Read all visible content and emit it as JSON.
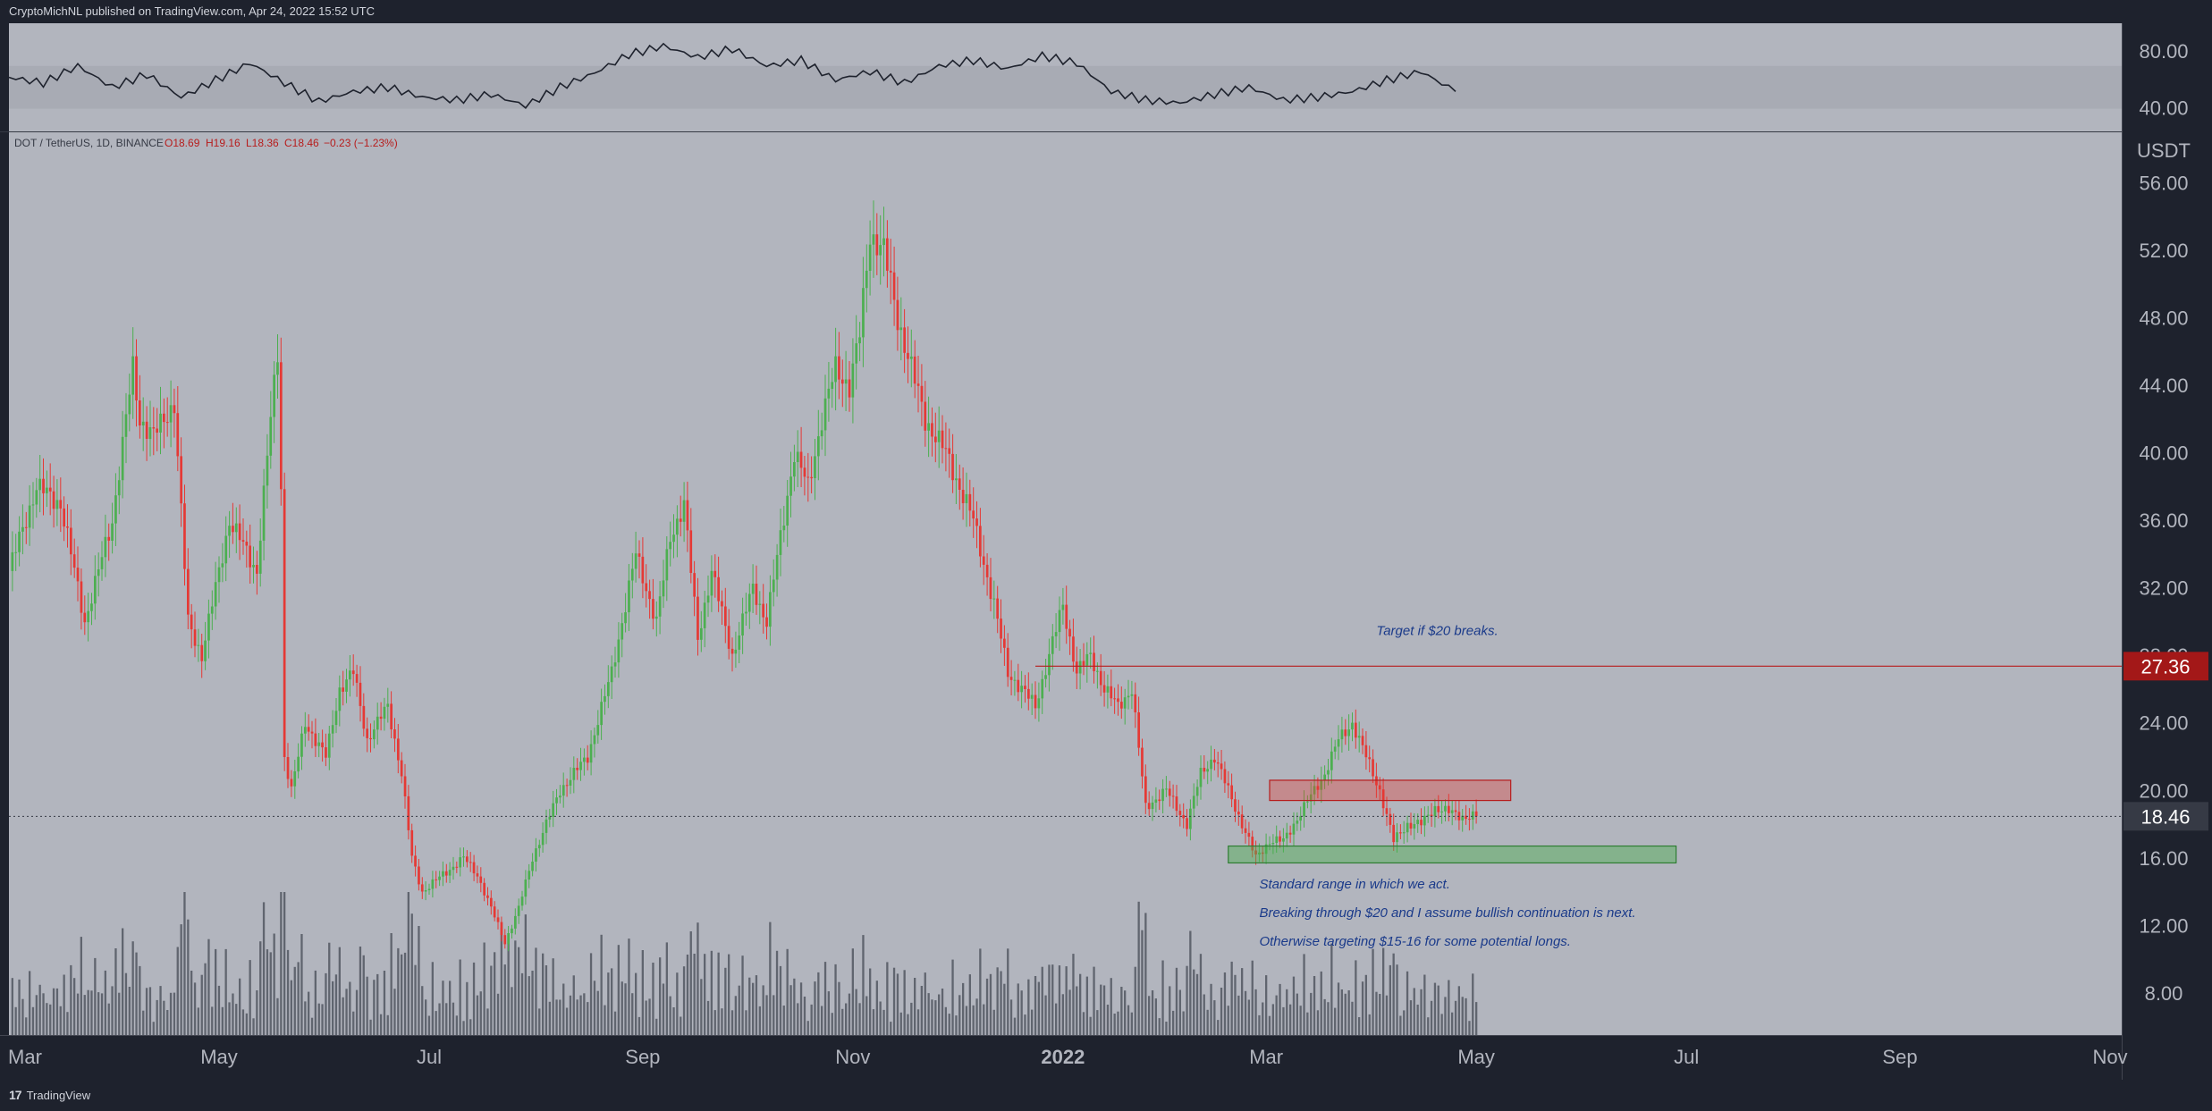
{
  "header": {
    "published_text": "CryptoMichNL published on TradingView.com, Apr 24, 2022 15:52 UTC"
  },
  "footer": {
    "brand": "TradingView"
  },
  "colors": {
    "up": "#4caf50",
    "down": "#e53935",
    "chart_bg": "#b2b5be",
    "rsi_band": "#a8abb4",
    "axis_bg": "#1e222d",
    "resistance_line": "#b71c1c",
    "price_label_bg": "#a31818",
    "current_label_bg": "#363a45",
    "annotation_text": "#1a3a8a"
  },
  "chart_data": [
    {
      "type": "line",
      "panel": "rsi",
      "yaxis_ticks": [
        "80.00",
        "40.00"
      ],
      "ylim": [
        24,
        100
      ],
      "band": [
        40,
        70
      ],
      "x_index": [
        0,
        10,
        20,
        30,
        40,
        50,
        60,
        70,
        80,
        90,
        100,
        110,
        120,
        130,
        140,
        150,
        160,
        170,
        180,
        190,
        200,
        210,
        220,
        230,
        240,
        250,
        260,
        270,
        280,
        290,
        300,
        310,
        320,
        330,
        340,
        350,
        360,
        370,
        380,
        390,
        400,
        410,
        420
      ],
      "values": [
        62,
        58,
        70,
        55,
        64,
        48,
        60,
        72,
        58,
        45,
        52,
        55,
        48,
        46,
        50,
        42,
        55,
        65,
        78,
        84,
        76,
        82,
        70,
        74,
        60,
        66,
        58,
        70,
        74,
        68,
        77,
        72,
        52,
        46,
        44,
        50,
        55,
        46,
        48,
        52,
        60,
        66,
        52
      ]
    },
    {
      "type": "candlestick",
      "panel": "price",
      "symbol_line": {
        "pair": "DOT / TetherUS, 1D, BINANCE",
        "open": "O18.69",
        "high": "H19.16",
        "low": "L18.36",
        "close": "C18.46",
        "change": "−0.23 (−1.23%)"
      },
      "currency": "USDT",
      "ylim": [
        5.5,
        59
      ],
      "yaxis_ticks": [
        "56.00",
        "52.00",
        "48.00",
        "44.00",
        "40.00",
        "36.00",
        "32.00",
        "28.00",
        "24.00",
        "20.00",
        "16.00",
        "12.00",
        "8.00"
      ],
      "x_ticks": [
        {
          "label": "Mar",
          "day": 0
        },
        {
          "label": "May",
          "day": 61
        },
        {
          "label": "Jul",
          "day": 122
        },
        {
          "label": "Sep",
          "day": 184
        },
        {
          "label": "Nov",
          "day": 245
        },
        {
          "label": "2022",
          "day": 306,
          "bold": true
        },
        {
          "label": "Mar",
          "day": 365
        },
        {
          "label": "May",
          "day": 426
        },
        {
          "label": "Jul",
          "day": 487
        },
        {
          "label": "Sep",
          "day": 549
        },
        {
          "label": "Nov",
          "day": 610
        }
      ],
      "close_path": {
        "days": [
          0,
          8,
          15,
          22,
          30,
          36,
          38,
          42,
          48,
          52,
          56,
          60,
          64,
          72,
          76,
          78,
          79,
          80,
          82,
          86,
          92,
          96,
          100,
          104,
          110,
          114,
          117,
          120,
          126,
          132,
          136,
          140,
          144,
          148,
          152,
          160,
          168,
          175,
          182,
          188,
          192,
          196,
          200,
          204,
          210,
          216,
          220,
          224,
          228,
          232,
          236,
          240,
          244,
          247,
          250,
          254,
          258,
          262,
          266,
          272,
          276,
          280,
          286,
          290,
          294,
          298,
          302,
          306,
          310,
          314,
          318,
          322,
          326,
          330,
          336,
          342,
          346,
          350,
          354,
          358,
          362,
          366,
          370,
          376,
          382,
          386,
          390,
          394,
          398,
          402,
          406,
          410,
          414,
          418,
          422,
          426
        ],
        "values": [
          33,
          38,
          37,
          30,
          36,
          45,
          42,
          41,
          43,
          30,
          28,
          32,
          36,
          33,
          42,
          46,
          38,
          22,
          20,
          24,
          22,
          26,
          27,
          23,
          25,
          21,
          16,
          14,
          15,
          16,
          15,
          13,
          11,
          13,
          16,
          20,
          22,
          27,
          34,
          30,
          35,
          37,
          29,
          33,
          28,
          32,
          30,
          35,
          40,
          38,
          42,
          45,
          44,
          47,
          53,
          52,
          48,
          45,
          42,
          40,
          38,
          36,
          31,
          27,
          26,
          25,
          28,
          31,
          27,
          28,
          26,
          25,
          26,
          19,
          20,
          18,
          21,
          22,
          20,
          18,
          16,
          17,
          17,
          19,
          21,
          23,
          24,
          22,
          20,
          17,
          18,
          18,
          19,
          18.7,
          18.46,
          18.46
        ]
      },
      "current_price": "18.46",
      "resistance_level": {
        "value": 27.36,
        "label": "27.36",
        "from_day": 298
      },
      "zones": [
        {
          "kind": "resistance",
          "from_day": 366,
          "to_day": 436,
          "low": 19.4,
          "high": 20.6
        },
        {
          "kind": "support",
          "from_day": 354,
          "to_day": 484,
          "low": 15.7,
          "high": 16.7
        }
      ],
      "annotations": [
        {
          "text": "Target if $20 breaks.",
          "day": 397,
          "price": 29.2
        },
        {
          "text": "Standard range in which we act.",
          "day": 363,
          "price": 14.2
        },
        {
          "text": "Breaking through $20 and I assume bullish continuation is next.",
          "day": 363,
          "price": 12.5
        },
        {
          "text": "Otherwise targeting $15-16 for some potential longs.",
          "day": 363,
          "price": 10.8
        }
      ]
    }
  ]
}
